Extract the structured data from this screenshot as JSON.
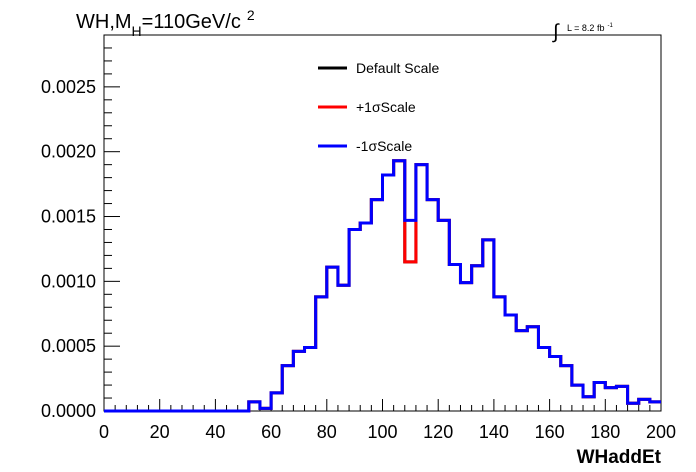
{
  "chart_data": {
    "type": "line",
    "title": "WH,M_H=110GeV/c^2",
    "title_parts": {
      "main": "WH,M",
      "sub": "H",
      "rest": "=110GeV/c",
      "sup": "2"
    },
    "luminosity": {
      "integral_sign": "∫",
      "label": "L = 8.2 fb",
      "sup": "-1"
    },
    "xlabel": "WHaddEt",
    "ylabel": "",
    "xlim": [
      0,
      200
    ],
    "ylim": [
      0,
      0.0029
    ],
    "x_ticks": [
      0,
      20,
      40,
      60,
      80,
      100,
      120,
      140,
      160,
      180,
      200
    ],
    "x_tick_labels": [
      "0",
      "20",
      "40",
      "60",
      "80",
      "100",
      "120",
      "140",
      "160",
      "180",
      "200"
    ],
    "y_ticks": [
      0,
      0.0005,
      0.001,
      0.0015,
      0.002,
      0.0025
    ],
    "y_tick_labels": [
      "0.0000",
      "0.0005",
      "0.0010",
      "0.0015",
      "0.0020",
      "0.0025"
    ],
    "grid": false,
    "legend_position": "top-center",
    "bin_width": 4,
    "bin_edges_start": 0,
    "series": [
      {
        "name": "Default Scale",
        "color": "#000000",
        "values": [
          0,
          0,
          0,
          0,
          0,
          0,
          0,
          0,
          0,
          0,
          0,
          0,
          0,
          7e-05,
          2e-05,
          0.00014,
          0.00035,
          0.00046,
          0.00049,
          0.00088,
          0.00111,
          0.00097,
          0.0014,
          0.00145,
          0.00163,
          0.00182,
          0.00193,
          0.00115,
          0.0019,
          0.00163,
          0.00147,
          0.00113,
          0.00099,
          0.00112,
          0.00132,
          0.00088,
          0.00074,
          0.00062,
          0.00065,
          0.00049,
          0.00042,
          0.00035,
          0.0002,
          0.00011,
          0.00022,
          0.00018,
          0.00019,
          6e-05,
          9e-05,
          7e-05
        ]
      },
      {
        "name": "+1σScale",
        "color": "#ff0000",
        "values": [
          0,
          0,
          0,
          0,
          0,
          0,
          0,
          0,
          0,
          0,
          0,
          0,
          0,
          7e-05,
          2e-05,
          0.00014,
          0.00035,
          0.00046,
          0.00049,
          0.00088,
          0.00111,
          0.00097,
          0.0014,
          0.00145,
          0.00163,
          0.00182,
          0.00193,
          0.00115,
          0.0019,
          0.00163,
          0.00147,
          0.00113,
          0.00099,
          0.00112,
          0.00132,
          0.00088,
          0.00074,
          0.00062,
          0.00065,
          0.00049,
          0.00042,
          0.00035,
          0.0002,
          0.00011,
          0.00022,
          0.00018,
          0.00019,
          6e-05,
          9e-05,
          7e-05
        ]
      },
      {
        "name": "-1σScale",
        "color": "#0000ff",
        "values": [
          0,
          0,
          0,
          0,
          0,
          0,
          0,
          0,
          0,
          0,
          0,
          0,
          0,
          7e-05,
          2e-05,
          0.00014,
          0.00035,
          0.00046,
          0.00049,
          0.00088,
          0.00111,
          0.00097,
          0.0014,
          0.00145,
          0.00163,
          0.00182,
          0.00193,
          0.00147,
          0.0019,
          0.00163,
          0.00147,
          0.00113,
          0.00099,
          0.00112,
          0.00132,
          0.00088,
          0.00074,
          0.00062,
          0.00065,
          0.00049,
          0.00042,
          0.00035,
          0.0002,
          0.00011,
          0.00022,
          0.00018,
          0.00019,
          6e-05,
          9e-05,
          7e-05
        ]
      }
    ]
  }
}
